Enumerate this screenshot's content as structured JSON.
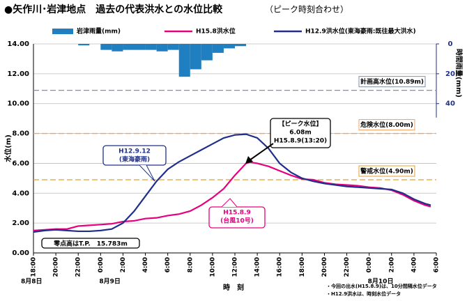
{
  "chart_data": {
    "type": "line",
    "title": "●矢作川･岩津地点　過去の代表洪水との水位比較",
    "subtitle": "（ピーク時刻合わせ）",
    "y_label": "水位(m)",
    "y2_label": "時間雨量(mm)",
    "x_label": "時　刻",
    "xlim": [
      0,
      36
    ],
    "xticks": [
      {
        "value": 0,
        "label": "18:00"
      },
      {
        "value": 2,
        "label": "20:00"
      },
      {
        "value": 4,
        "label": "22:00"
      },
      {
        "value": 6,
        "label": "0:00"
      },
      {
        "value": 8,
        "label": "2:00"
      },
      {
        "value": 10,
        "label": "4:00"
      },
      {
        "value": 12,
        "label": "6:00"
      },
      {
        "value": 14,
        "label": "8:00"
      },
      {
        "value": 16,
        "label": "10:00"
      },
      {
        "value": 18,
        "label": "12:00"
      },
      {
        "value": 20,
        "label": "14:00"
      },
      {
        "value": 22,
        "label": "16:00"
      },
      {
        "value": 24,
        "label": "18:00"
      },
      {
        "value": 26,
        "label": "20:00"
      },
      {
        "value": 28,
        "label": "22:00"
      },
      {
        "value": 30,
        "label": "0:00"
      },
      {
        "value": 32,
        "label": "2:00"
      },
      {
        "value": 34,
        "label": "4:00"
      },
      {
        "value": 36,
        "label": "6:00"
      }
    ],
    "date_labels": [
      {
        "value": 0,
        "label": "8月8日"
      },
      {
        "value": 6,
        "label": "8月9日"
      },
      {
        "value": 30,
        "label": "8月10日"
      }
    ],
    "ylim": [
      0,
      14
    ],
    "yticks": [
      {
        "value": 0,
        "label": "0.00"
      },
      {
        "value": 2,
        "label": "2.00"
      },
      {
        "value": 4,
        "label": "4.00"
      },
      {
        "value": 6,
        "label": "6.00"
      },
      {
        "value": 8,
        "label": "8.00"
      },
      {
        "value": 10,
        "label": "10.00"
      },
      {
        "value": 12,
        "label": "12.00"
      },
      {
        "value": 14,
        "label": "14.00"
      }
    ],
    "y2lim": [
      0,
      140
    ],
    "y2ticks": [
      0,
      20,
      40
    ],
    "grid": true,
    "series": [
      {
        "name": "岩津雨量(mm)",
        "type": "bar",
        "axis": "y2",
        "color": "#1f7fc0",
        "x": [
          4,
          6,
          7,
          8,
          9,
          10,
          11,
          12,
          13,
          14,
          15,
          16,
          17,
          18
        ],
        "values": [
          1,
          4,
          5,
          4,
          4,
          4,
          5,
          4,
          22,
          17,
          11,
          6,
          3,
          1.5
        ]
      },
      {
        "name": "H15.8洪水位",
        "type": "line",
        "color": "#e6007e",
        "x": [
          0,
          1,
          2,
          3,
          4,
          5,
          6,
          7,
          8,
          9,
          10,
          11,
          12,
          13,
          14,
          15,
          16,
          17,
          18,
          19,
          19.33,
          20,
          21,
          22,
          23,
          24,
          25,
          26,
          27,
          28,
          29,
          30,
          31,
          32,
          33,
          34,
          35,
          35.5
        ],
        "values": [
          1.5,
          1.55,
          1.6,
          1.6,
          1.8,
          1.85,
          1.9,
          1.95,
          2.1,
          2.15,
          2.3,
          2.35,
          2.5,
          2.6,
          2.8,
          3.2,
          3.7,
          4.3,
          5.2,
          6.0,
          6.08,
          6.0,
          5.8,
          5.5,
          5.2,
          4.95,
          4.9,
          4.7,
          4.6,
          4.55,
          4.5,
          4.4,
          4.35,
          4.2,
          3.9,
          3.5,
          3.2,
          3.1
        ]
      },
      {
        "name": "H12.9洪水位(東海豪雨:既往最大洪水)",
        "type": "line",
        "color": "#1f2f8a",
        "x": [
          0,
          1,
          2,
          3,
          4,
          5,
          6,
          7,
          8,
          9,
          10,
          11,
          12,
          13,
          14,
          15,
          16,
          17,
          18,
          19,
          20,
          21,
          22,
          23,
          24,
          25,
          26,
          27,
          28,
          29,
          30,
          31,
          32,
          33,
          34,
          35,
          35.5
        ],
        "values": [
          1.4,
          1.5,
          1.55,
          1.5,
          1.45,
          1.45,
          1.5,
          1.6,
          2.0,
          2.8,
          3.8,
          4.8,
          5.6,
          6.1,
          6.5,
          6.9,
          7.3,
          7.7,
          7.9,
          7.95,
          7.7,
          7.0,
          6.0,
          5.4,
          5.0,
          4.8,
          4.65,
          4.55,
          4.45,
          4.4,
          4.35,
          4.3,
          4.25,
          4.0,
          3.6,
          3.3,
          3.2
        ]
      }
    ],
    "reference_lines": [
      {
        "value": 10.89,
        "label": "計画高水位(10.89m)",
        "color": "#7f8fa8"
      },
      {
        "value": 8.0,
        "label": "危険水位(8.00m)",
        "color": "#f4a060"
      },
      {
        "value": 4.9,
        "label": "警戒水位(4.90m)",
        "color": "#e0a030"
      }
    ],
    "annotations": [
      {
        "lines": [
          "【ピーク水位】",
          "6.08m",
          "H15.8.9(13:20)"
        ],
        "color": "#000"
      },
      {
        "lines": [
          "H12.9.12",
          "(東海豪雨)"
        ],
        "color": "#1f2f8a"
      },
      {
        "lines": [
          "H15.8.9",
          "(台風10号)"
        ],
        "color": "#e6007e"
      },
      {
        "lines": [
          "零点高はT.P.　15.783m"
        ],
        "color": "#000"
      }
    ],
    "notes": [
      "・今回の出水(H15.8.9)は、10分間隔水位データ",
      "・H12.9洪水は、時刻水位データ"
    ]
  }
}
